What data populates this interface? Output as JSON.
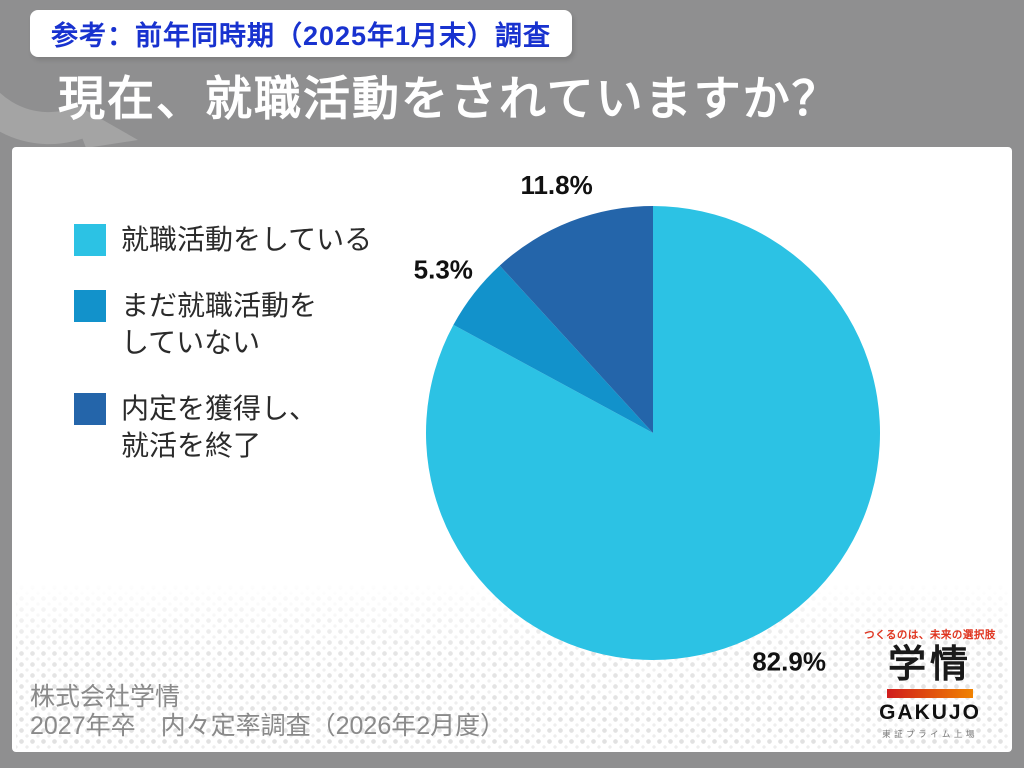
{
  "badge": {
    "label": "参考：前年同時期（2025年1月末）調査"
  },
  "header": {
    "title": "現在、就職活動をされていますか？"
  },
  "chart_data": {
    "type": "pie",
    "title": "現在、就職活動をされていますか？",
    "categories": [
      "就職活動をしている",
      "まだ就職活動を\nしていない",
      "内定を獲得し、\n就活を終了"
    ],
    "values": [
      82.9,
      5.3,
      11.8
    ],
    "labels": [
      "82.9%",
      "5.3%",
      "11.8%"
    ],
    "unit": "%",
    "colors": [
      "#2cc2e4",
      "#1292cb",
      "#2465aa"
    ],
    "start_angle_deg": 0,
    "direction": "clockwise",
    "legend_position": "left",
    "data_label_position": "outside"
  },
  "footer": {
    "company": "株式会社学情",
    "survey": "2027年卒　内々定率調査（2026年2月度）"
  },
  "logo": {
    "tagline": "つくるのは、未来の選択肢",
    "name_jp": "学情",
    "name_en": "GAKUJO",
    "listing": "東証プライム上場"
  },
  "colors": {
    "background_gray": "#8f8f90",
    "watermark_gray": "#a4a4a4",
    "badge_text_blue": "#1832cf",
    "title_white": "#ffffff",
    "legend_text": "#2b2b2b",
    "footer_gray": "#8a8a8a",
    "logo_red": "#e03520",
    "logo_bar_gradient": [
      "#d01c1c",
      "#f08200"
    ]
  }
}
